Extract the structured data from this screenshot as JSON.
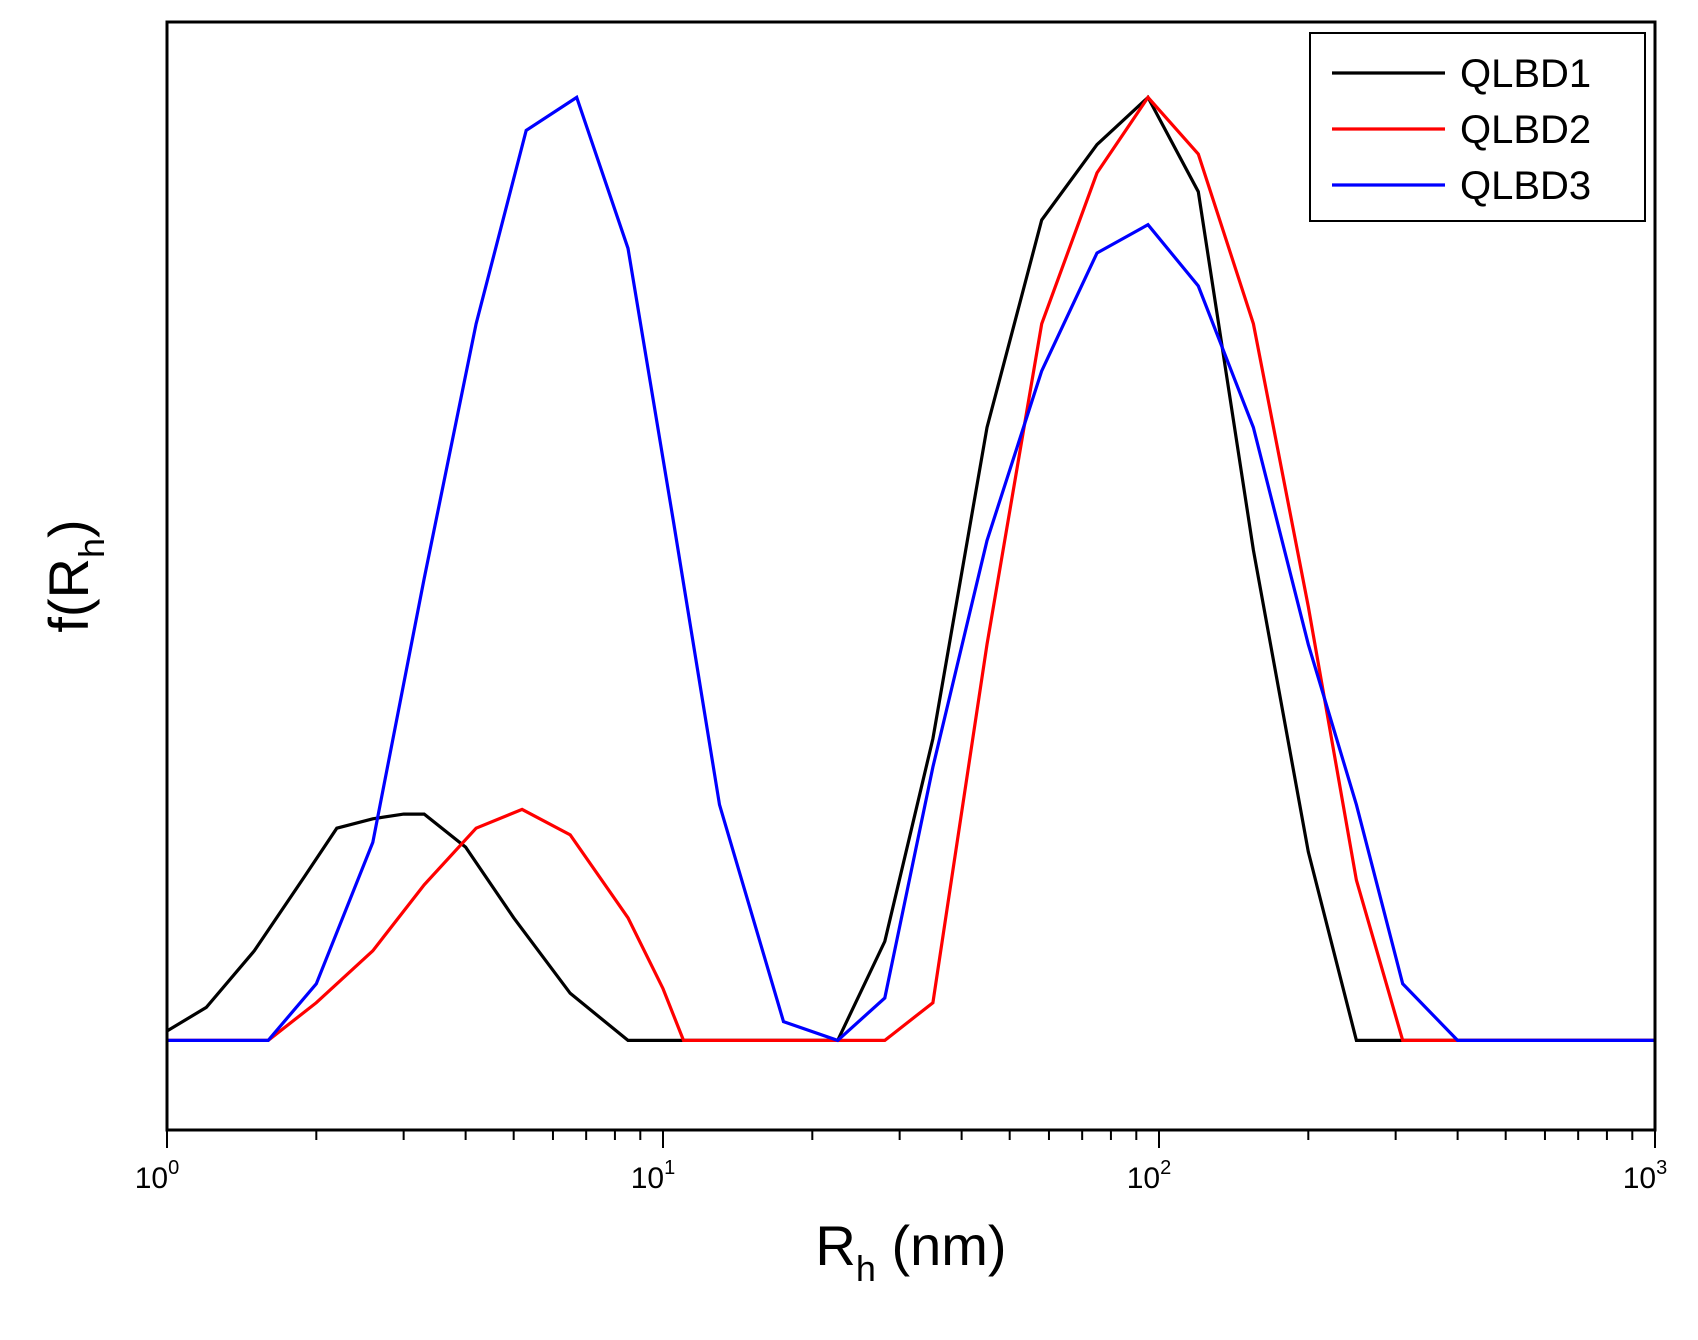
{
  "chart_data": {
    "type": "line",
    "xlabel": {
      "base": "R",
      "sub": "h",
      "rest": " (nm)"
    },
    "ylabel": {
      "pre": "f(R",
      "sub": "h",
      "post": ")"
    },
    "xscale": "log",
    "xlim": [
      1,
      1000
    ],
    "ylim": [
      -0.095,
      1.08
    ],
    "y_ticks_labeled": false,
    "grid": false,
    "legend_position": "top-right",
    "x_tick_labels": [
      {
        "base": "10",
        "exp": "0",
        "value": 1
      },
      {
        "base": "10",
        "exp": "1",
        "value": 10
      },
      {
        "base": "10",
        "exp": "2",
        "value": 100
      },
      {
        "base": "10",
        "exp": "3",
        "value": 1000
      }
    ],
    "series": [
      {
        "name": "QLBD1",
        "color": "#000000",
        "x": [
          1.0,
          1.2,
          1.5,
          1.9,
          2.2,
          2.6,
          3.0,
          3.3,
          4.0,
          5.0,
          6.5,
          8.5,
          10,
          15,
          22.5,
          28,
          35,
          45,
          58,
          75,
          95,
          120,
          155,
          200,
          250,
          1000
        ],
        "y": [
          0.01,
          0.035,
          0.095,
          0.175,
          0.225,
          0.235,
          0.24,
          0.24,
          0.205,
          0.13,
          0.05,
          0.0,
          0.0,
          0.0,
          0.0,
          0.105,
          0.32,
          0.65,
          0.87,
          0.95,
          1.0,
          0.9,
          0.52,
          0.2,
          0.0,
          0.0
        ]
      },
      {
        "name": "QLBD2",
        "color": "#ff0000",
        "x": [
          1.0,
          1.6,
          2.0,
          2.6,
          3.3,
          4.2,
          5.2,
          6.5,
          8.5,
          10,
          11,
          15,
          22.5,
          28,
          35,
          45,
          58,
          75,
          95,
          120,
          155,
          200,
          250,
          310,
          1000
        ],
        "y": [
          0.0,
          0.0,
          0.04,
          0.095,
          0.165,
          0.225,
          0.245,
          0.218,
          0.13,
          0.055,
          0.0,
          0.0,
          0.0,
          0.0,
          0.04,
          0.42,
          0.76,
          0.92,
          1.0,
          0.94,
          0.76,
          0.46,
          0.17,
          0.0,
          0.0
        ]
      },
      {
        "name": "QLBD3",
        "color": "#0000ff",
        "x": [
          1.0,
          1.6,
          2.0,
          2.6,
          3.3,
          4.2,
          5.3,
          6.7,
          8.5,
          10.5,
          13,
          17.5,
          22.5,
          28,
          35,
          45,
          58,
          75,
          95,
          120,
          155,
          200,
          250,
          310,
          400,
          1000
        ],
        "y": [
          0.0,
          0.0,
          0.06,
          0.21,
          0.49,
          0.76,
          0.965,
          1.0,
          0.84,
          0.55,
          0.25,
          0.02,
          0.0,
          0.045,
          0.29,
          0.53,
          0.71,
          0.835,
          0.865,
          0.8,
          0.65,
          0.42,
          0.25,
          0.06,
          0.0,
          0.0
        ]
      }
    ]
  }
}
